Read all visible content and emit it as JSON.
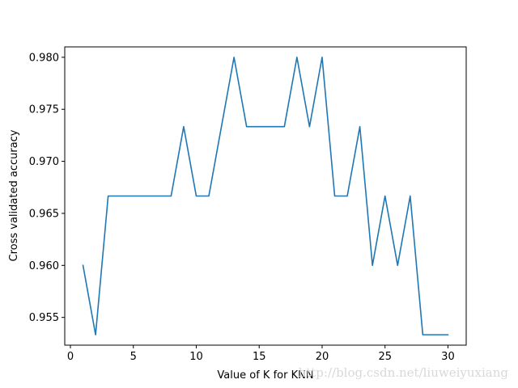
{
  "chart_data": {
    "type": "line",
    "title": "",
    "xlabel": "Value of K for KNN",
    "ylabel": "Cross validated accuracy",
    "xlim": [
      -0.45,
      31.45
    ],
    "ylim": [
      0.952333,
      0.981
    ],
    "xticks": [
      0,
      5,
      10,
      15,
      20,
      25,
      30
    ],
    "yticks": [
      0.955,
      0.96,
      0.965,
      0.97,
      0.975,
      0.98
    ],
    "xtick_labels": [
      "0",
      "5",
      "10",
      "15",
      "20",
      "25",
      "30"
    ],
    "ytick_labels": [
      "0.955",
      "0.960",
      "0.965",
      "0.970",
      "0.975",
      "0.980"
    ],
    "grid": false,
    "series": [
      {
        "color": "#1f77b4",
        "x": [
          1,
          2,
          3,
          4,
          5,
          6,
          7,
          8,
          9,
          10,
          11,
          12,
          13,
          14,
          15,
          16,
          17,
          18,
          19,
          20,
          21,
          22,
          23,
          24,
          25,
          26,
          27,
          28,
          29,
          30
        ],
        "y": [
          0.96,
          0.953333,
          0.966667,
          0.966667,
          0.966667,
          0.966667,
          0.966667,
          0.966667,
          0.973333,
          0.966667,
          0.966667,
          0.973333,
          0.98,
          0.973333,
          0.973333,
          0.973333,
          0.973333,
          0.98,
          0.973333,
          0.98,
          0.966667,
          0.966667,
          0.973333,
          0.96,
          0.966667,
          0.96,
          0.966667,
          0.953333,
          0.953333,
          0.953333
        ]
      }
    ]
  },
  "watermark": "http://blog.csdn.net/liuweiyuxiang"
}
